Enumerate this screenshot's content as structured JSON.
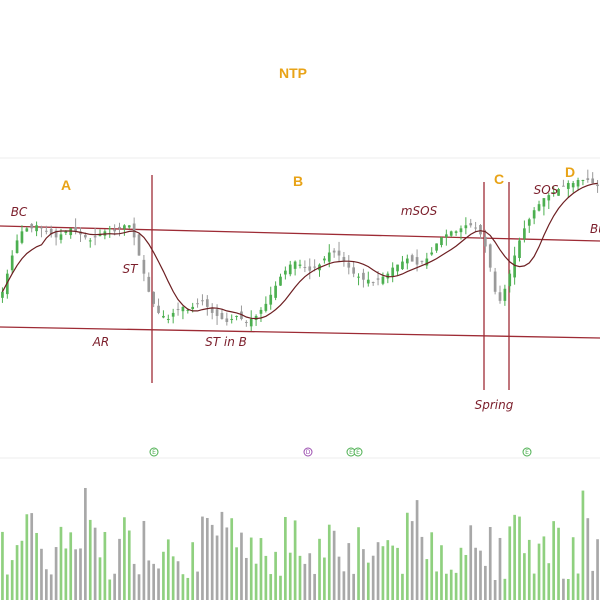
{
  "colors": {
    "phase_label": "#e8a317",
    "annotation_text": "#7b1e2b",
    "channel_line": "#9e2b35",
    "up_candle": "#4caf50",
    "down_candle": "#9a9a9a",
    "ma_line": "#6d1f22",
    "up_volume": "#8fd07f",
    "down_volume": "#a8a8a8",
    "marker_green": "#4caf50",
    "marker_purple": "#9c4fb0"
  },
  "chart_data": {
    "type": "candlestick",
    "title": "NTP",
    "phase_labels": [
      "A",
      "B",
      "C",
      "D"
    ],
    "annotations": [
      "BC",
      "AR",
      "ST",
      "ST in B",
      "mSOS",
      "Spring",
      "SOS",
      "Bu"
    ],
    "markers": [
      {
        "glyph": "E",
        "color": "green"
      },
      {
        "glyph": "D",
        "color": "purple"
      },
      {
        "glyph": "E",
        "color": "green"
      },
      {
        "glyph": "E",
        "color": "green"
      },
      {
        "glyph": "E",
        "color": "green"
      }
    ],
    "series": {
      "close": [
        100,
        106,
        112,
        117,
        120,
        121,
        121,
        122,
        121,
        120,
        119,
        118,
        119,
        120,
        121,
        120,
        119,
        118,
        117,
        118,
        119,
        120,
        121,
        120,
        121,
        122,
        122,
        118,
        112,
        106,
        100,
        96,
        93,
        92,
        91,
        93,
        94,
        95,
        94,
        95,
        96,
        97,
        95,
        93,
        92,
        91,
        90,
        91,
        92,
        91,
        90,
        91,
        92,
        94,
        96,
        99,
        102,
        105,
        107,
        109,
        110,
        109,
        108,
        107,
        108,
        109,
        111,
        113,
        113,
        112,
        110,
        108,
        106,
        105,
        104,
        104,
        103,
        104,
        105,
        106,
        108,
        109,
        110,
        111,
        110,
        109,
        110,
        111,
        113,
        116,
        118,
        119,
        120,
        120,
        121,
        122,
        122,
        121,
        119,
        115,
        108,
        100,
        97,
        101,
        106,
        112,
        117,
        121,
        124,
        127,
        129,
        131,
        132,
        133,
        134,
        135,
        136,
        136,
        137,
        137,
        137,
        136,
        135
      ]
    },
    "volume_scale_note": "relative"
  }
}
